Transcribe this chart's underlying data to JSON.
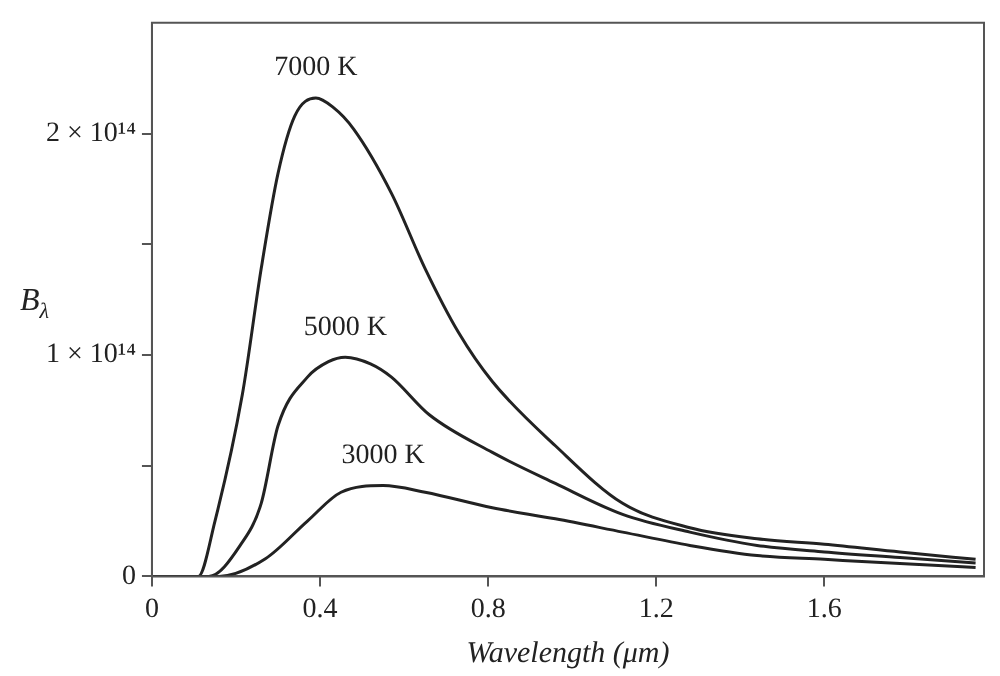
{
  "chart_data": {
    "type": "line",
    "xlabel": "Wavelength (μm)",
    "ylabel": "B$_{λ}$",
    "xlim": [
      0,
      1.98
    ],
    "xticks": [
      0,
      0.4,
      0.8,
      1.2,
      1.6
    ],
    "ylim": [
      0,
      250000000000000.0
    ],
    "yticks": [
      {
        "value": 0,
        "label": "0"
      },
      {
        "value": 50000000000000.0,
        "label": null
      },
      {
        "value": 100000000000000.0,
        "label": "1 × 10¹⁴"
      },
      {
        "value": 150000000000000.0,
        "label": null
      },
      {
        "value": 200000000000000.0,
        "label": "2 × 10¹⁴"
      }
    ],
    "grid": false,
    "legend": false,
    "marker": "none",
    "line_style": "solid",
    "series": [
      {
        "name": "7000 K",
        "color": "#222222",
        "x": [
          0,
          0.11,
          0.15,
          0.215,
          0.26,
          0.3,
          0.34,
          0.39,
          0.43,
          0.48,
          0.57,
          0.65,
          0.73,
          0.81,
          0.96,
          1.12,
          1.28,
          1.44,
          1.6,
          1.78,
          1.96
        ],
        "values": [
          0,
          0,
          25000000000000.0,
          82000000000000.0,
          139000000000000.0,
          182000000000000.0,
          208000000000000.0,
          216000000000000.0,
          212000000000000.0,
          202000000000000.0,
          173000000000000.0,
          139000000000000.0,
          110000000000000.0,
          88000000000000.0,
          59000000000000.0,
          33000000000000.0,
          22000000000000.0,
          17000000000000.0,
          14500000000000.0,
          11000000000000.0,
          7700000000000.0
        ]
      },
      {
        "name": "5000 K",
        "color": "#222222",
        "x": [
          0,
          0.135,
          0.21,
          0.26,
          0.3,
          0.37,
          0.42,
          0.46,
          0.52,
          0.57,
          0.66,
          0.81,
          0.96,
          1.12,
          1.28,
          1.44,
          1.6,
          1.78,
          1.96
        ],
        "values": [
          0,
          0,
          14000000000000.0,
          33000000000000.0,
          68000000000000.0,
          90000000000000.0,
          97000000000000.0,
          99000000000000.0,
          96000000000000.0,
          90000000000000.0,
          73000000000000.0,
          56000000000000.0,
          42000000000000.0,
          28000000000000.0,
          20000000000000.0,
          14000000000000.0,
          11000000000000.0,
          8500000000000.0,
          6000000000000.0
        ]
      },
      {
        "name": "3000 K",
        "color": "#222222",
        "x": [
          0,
          0.16,
          0.27,
          0.37,
          0.45,
          0.55,
          0.65,
          0.81,
          0.96,
          1.12,
          1.28,
          1.44,
          1.6,
          1.78,
          1.96
        ],
        "values": [
          0,
          0,
          8000000000000.0,
          25000000000000.0,
          38000000000000.0,
          41000000000000.0,
          38000000000000.0,
          31000000000000.0,
          26000000000000.0,
          20000000000000.0,
          14000000000000.0,
          9400000000000.0,
          7700000000000.0,
          5800000000000.0,
          4000000000000.0
        ]
      }
    ]
  }
}
